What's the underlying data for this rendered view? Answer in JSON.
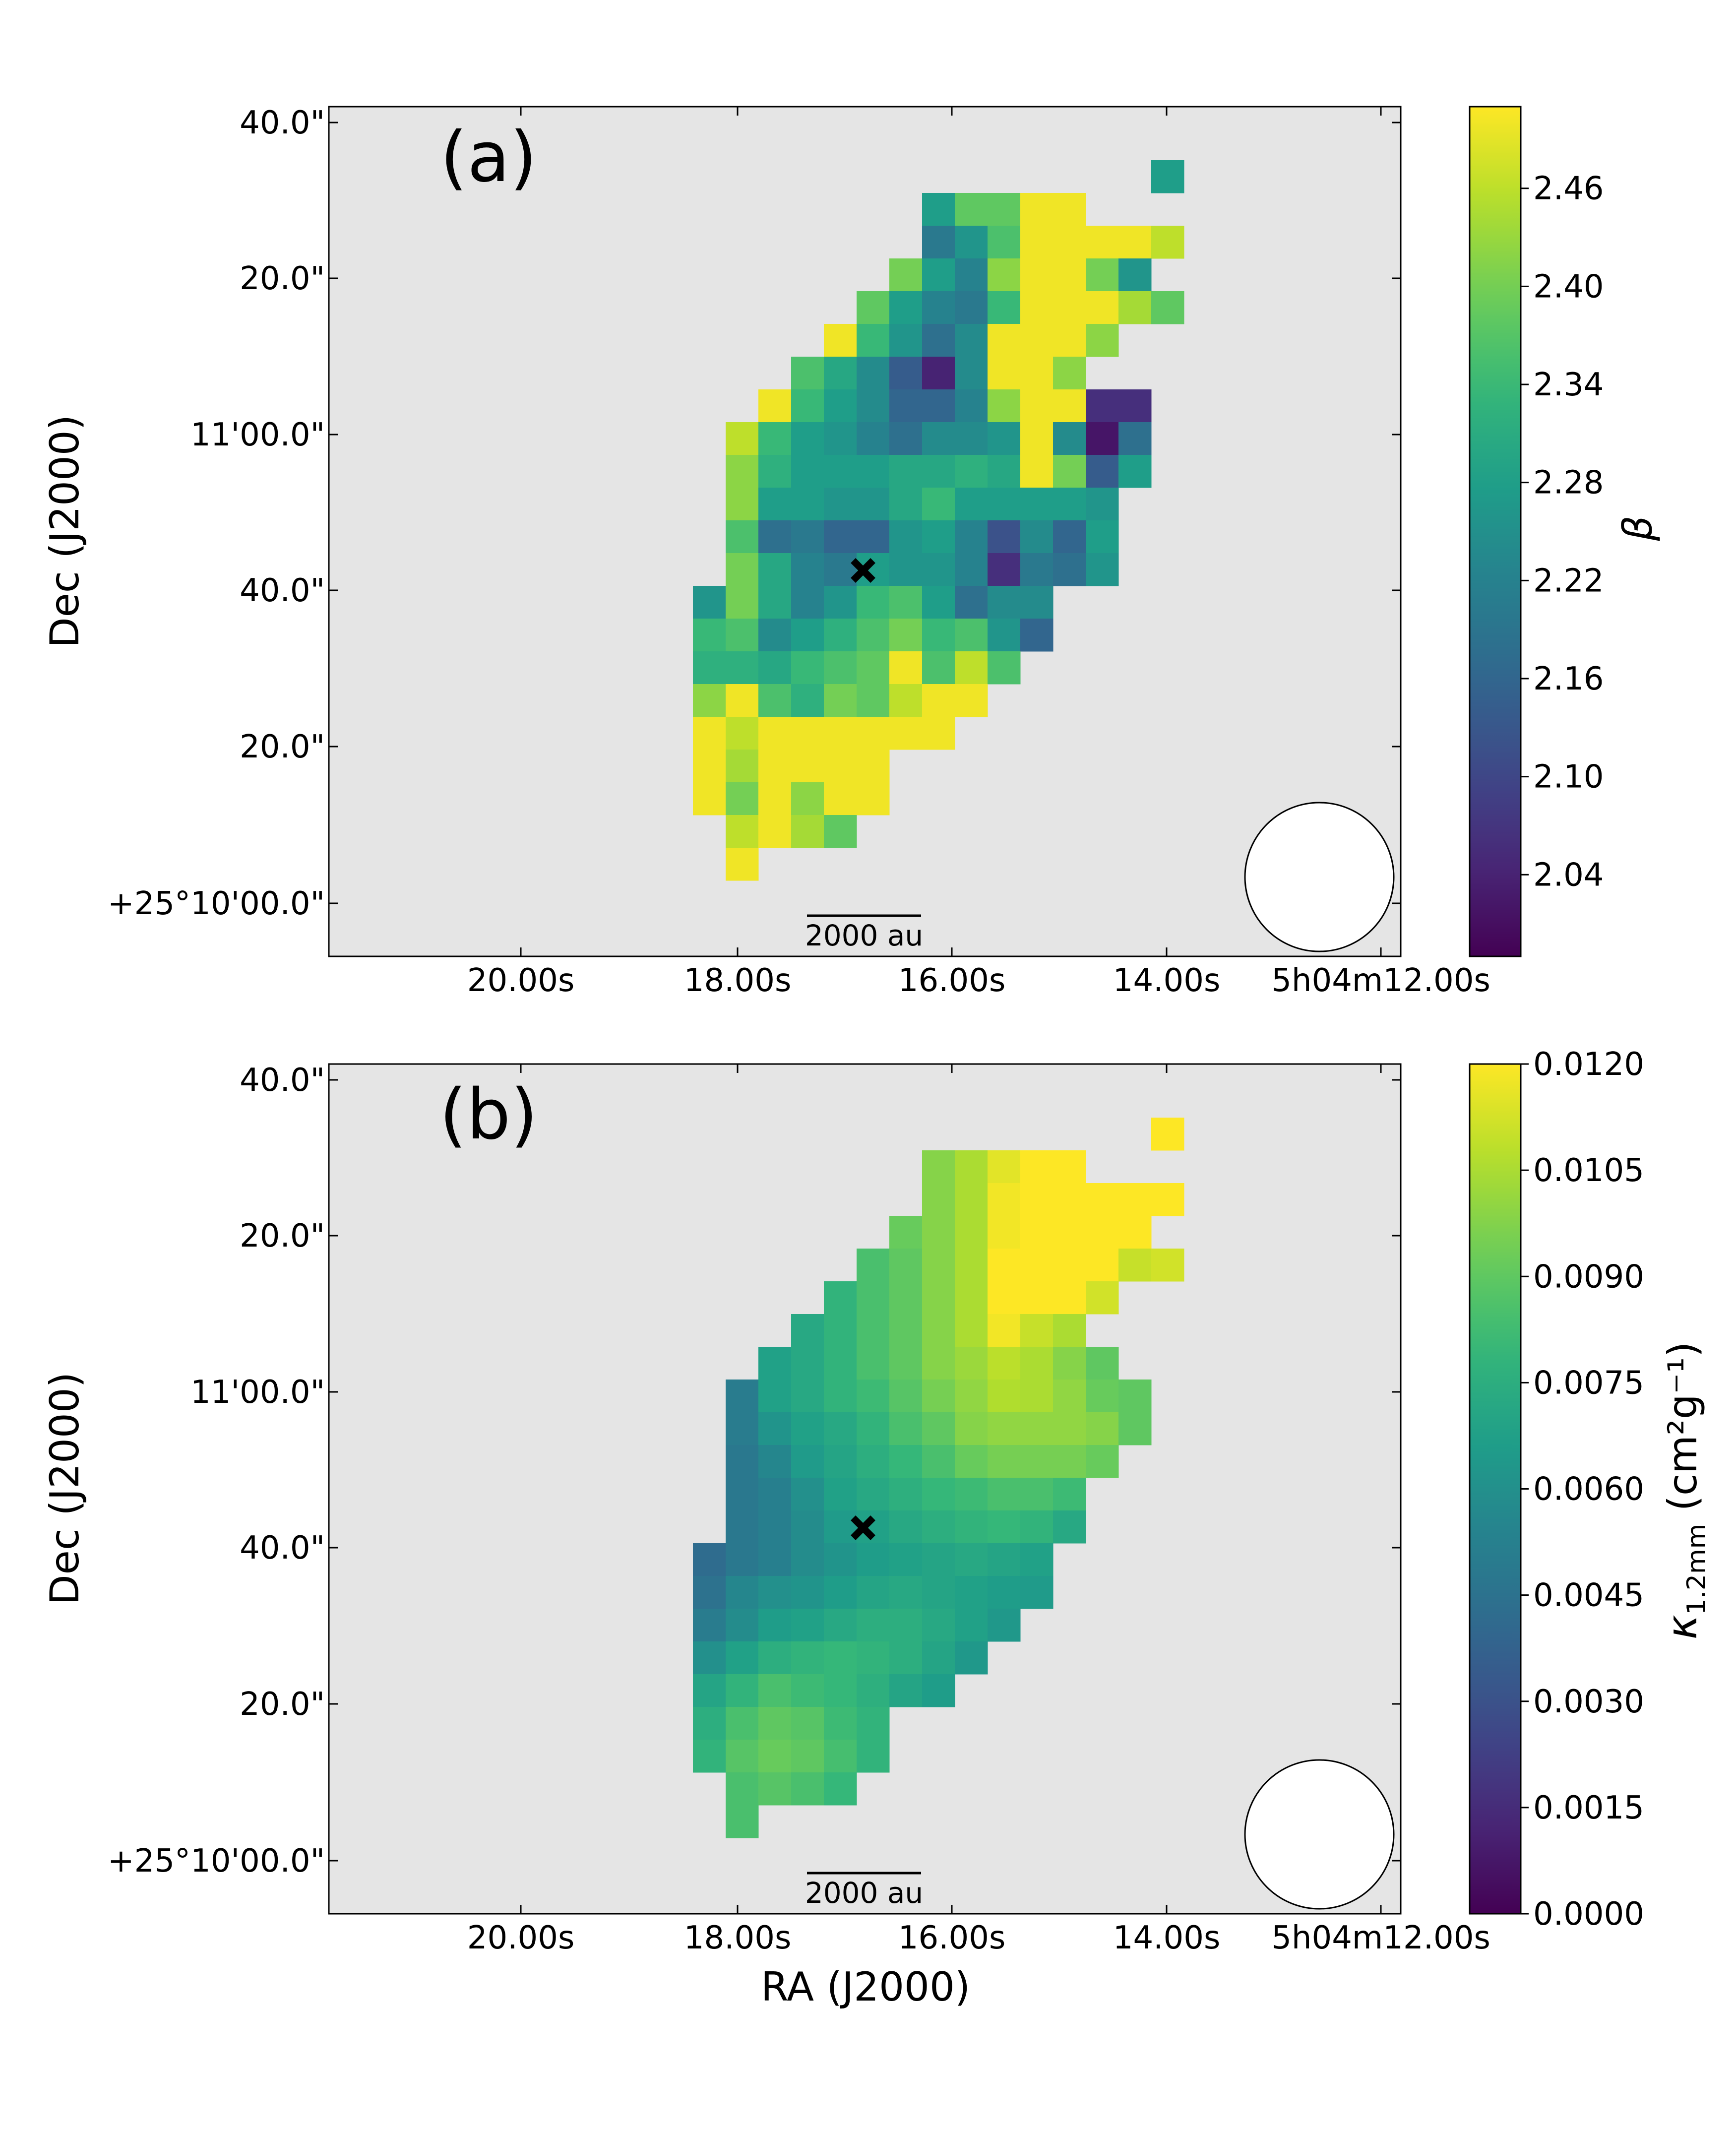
{
  "chart_data": [
    {
      "type": "heatmap",
      "panel_label": "(a)",
      "ylabel": "Dec (J2000)",
      "xlabel": "",
      "x_ticks": [
        "20.00s",
        "18.00s",
        "16.00s",
        "14.00s",
        "5h04m12.00s"
      ],
      "y_ticks": [
        "40.0\"",
        "20.0\"",
        "11'00.0\"",
        "40.0\"",
        "20.0\"",
        "+25°10'00.0\""
      ],
      "colorbar": {
        "label": "β",
        "range": [
          1.99,
          2.51
        ],
        "ticks": [
          "2.46",
          "2.40",
          "2.34",
          "2.28",
          "2.22",
          "2.16",
          "2.10",
          "2.04"
        ],
        "tick_values": [
          2.46,
          2.4,
          2.34,
          2.28,
          2.22,
          2.16,
          2.1,
          2.04
        ]
      },
      "marker": "×",
      "scale_bar": "2000 au",
      "beam": "circle",
      "pixel_rows": [
        {
          "row": 2,
          "start": 25,
          "values": [
            2.28
          ]
        },
        {
          "row": 3,
          "start": 18,
          "values": [
            2.28,
            2.38,
            2.38,
            2.5,
            2.5
          ]
        },
        {
          "row": 4,
          "start": 18,
          "values": [
            2.2,
            2.26,
            2.36,
            2.5,
            2.5,
            2.5,
            2.5,
            2.46
          ]
        },
        {
          "row": 5,
          "start": 17,
          "values": [
            2.4,
            2.28,
            2.22,
            2.42,
            2.5,
            2.5,
            2.4,
            2.26
          ]
        },
        {
          "row": 6,
          "start": 16,
          "values": [
            2.38,
            2.28,
            2.22,
            2.2,
            2.34,
            2.5,
            2.5,
            2.5,
            2.44,
            2.38
          ]
        },
        {
          "row": 7,
          "start": 15,
          "values": [
            2.5,
            2.34,
            2.26,
            2.18,
            2.24,
            2.5,
            2.5,
            2.5,
            2.42
          ]
        },
        {
          "row": 8,
          "start": 14,
          "values": [
            2.36,
            2.3,
            2.24,
            2.14,
            2.04,
            2.24,
            2.5,
            2.5,
            2.42
          ]
        },
        {
          "row": 9,
          "start": 13,
          "values": [
            2.5,
            2.34,
            2.28,
            2.24,
            2.16,
            2.16,
            2.22,
            2.42,
            2.5,
            2.5,
            2.06,
            2.06
          ]
        },
        {
          "row": 10,
          "start": 12,
          "values": [
            2.46,
            2.34,
            2.28,
            2.26,
            2.22,
            2.18,
            2.24,
            2.24,
            2.26,
            2.5,
            2.24,
            2.02,
            2.18
          ]
        },
        {
          "row": 11,
          "start": 12,
          "values": [
            2.42,
            2.32,
            2.28,
            2.28,
            2.28,
            2.3,
            2.3,
            2.32,
            2.3,
            2.5,
            2.4,
            2.14,
            2.28
          ]
        },
        {
          "row": 12,
          "start": 12,
          "values": [
            2.42,
            2.28,
            2.28,
            2.26,
            2.26,
            2.3,
            2.34,
            2.28,
            2.28,
            2.28,
            2.28,
            2.26
          ]
        },
        {
          "row": 13,
          "start": 12,
          "values": [
            2.36,
            2.18,
            2.2,
            2.16,
            2.16,
            2.26,
            2.28,
            2.22,
            2.12,
            2.24,
            2.16,
            2.28
          ]
        },
        {
          "row": 14,
          "start": 12,
          "values": [
            2.4,
            2.3,
            2.22,
            2.2,
            2.28,
            2.26,
            2.26,
            2.22,
            2.06,
            2.2,
            2.18,
            2.26
          ]
        },
        {
          "row": 15,
          "start": 11,
          "values": [
            2.26,
            2.4,
            2.3,
            2.22,
            2.26,
            2.34,
            2.36,
            2.28,
            2.18,
            2.24,
            2.24
          ]
        },
        {
          "row": 16,
          "start": 11,
          "values": [
            2.34,
            2.36,
            2.24,
            2.28,
            2.32,
            2.36,
            2.4,
            2.34,
            2.36,
            2.26,
            2.16
          ]
        },
        {
          "row": 17,
          "start": 11,
          "values": [
            2.32,
            2.32,
            2.3,
            2.34,
            2.36,
            2.38,
            2.5,
            2.36,
            2.46,
            2.36
          ]
        },
        {
          "row": 18,
          "start": 11,
          "values": [
            2.42,
            2.5,
            2.36,
            2.32,
            2.4,
            2.38,
            2.46,
            2.5,
            2.5
          ]
        },
        {
          "row": 19,
          "start": 11,
          "values": [
            2.5,
            2.46,
            2.5,
            2.5,
            2.5,
            2.5,
            2.5,
            2.5
          ]
        },
        {
          "row": 20,
          "start": 11,
          "values": [
            2.5,
            2.44,
            2.5,
            2.5,
            2.5,
            2.5
          ]
        },
        {
          "row": 21,
          "start": 11,
          "values": [
            2.5,
            2.4,
            2.5,
            2.42,
            2.5,
            2.5
          ]
        },
        {
          "row": 22,
          "start": 12,
          "values": [
            2.46,
            2.5,
            2.44,
            2.38
          ]
        },
        {
          "row": 23,
          "start": 12,
          "values": [
            2.5
          ]
        }
      ]
    },
    {
      "type": "heatmap",
      "panel_label": "(b)",
      "ylabel": "Dec (J2000)",
      "xlabel": "RA (J2000)",
      "x_ticks": [
        "20.00s",
        "18.00s",
        "16.00s",
        "14.00s",
        "5h04m12.00s"
      ],
      "y_ticks": [
        "40.0\"",
        "20.0\"",
        "11'00.0\"",
        "40.0\"",
        "20.0\"",
        "+25°10'00.0\""
      ],
      "colorbar": {
        "label": "κ1.2mm (cm²g⁻¹)",
        "label_main": "κ",
        "label_sub": "1.2mm",
        "label_unit": " (cm²g⁻¹)",
        "range": [
          0.0,
          0.012
        ],
        "ticks": [
          "0.0120",
          "0.0105",
          "0.0090",
          "0.0075",
          "0.0060",
          "0.0045",
          "0.0030",
          "0.0015",
          "0.0000"
        ],
        "tick_values": [
          0.012,
          0.0105,
          0.009,
          0.0075,
          0.006,
          0.0045,
          0.003,
          0.0015,
          0.0
        ]
      },
      "marker": "×",
      "scale_bar": "2000 au",
      "beam": "circle",
      "pixel_rows": [
        {
          "row": 2,
          "start": 25,
          "values": [
            0.012
          ]
        },
        {
          "row": 3,
          "start": 18,
          "values": [
            0.0098,
            0.0105,
            0.0115,
            0.012,
            0.012
          ]
        },
        {
          "row": 4,
          "start": 18,
          "values": [
            0.0098,
            0.0105,
            0.0118,
            0.012,
            0.012,
            0.012,
            0.012,
            0.012
          ]
        },
        {
          "row": 5,
          "start": 17,
          "values": [
            0.0092,
            0.0098,
            0.0105,
            0.0118,
            0.012,
            0.012,
            0.012,
            0.012
          ]
        },
        {
          "row": 6,
          "start": 16,
          "values": [
            0.0085,
            0.009,
            0.0098,
            0.0105,
            0.012,
            0.012,
            0.012,
            0.012,
            0.011,
            0.0112
          ]
        },
        {
          "row": 7,
          "start": 15,
          "values": [
            0.0078,
            0.0085,
            0.009,
            0.0098,
            0.0105,
            0.012,
            0.012,
            0.012,
            0.0112
          ]
        },
        {
          "row": 8,
          "start": 14,
          "values": [
            0.0072,
            0.0078,
            0.0085,
            0.009,
            0.0098,
            0.0105,
            0.0118,
            0.011,
            0.0105
          ]
        },
        {
          "row": 9,
          "start": 13,
          "values": [
            0.0068,
            0.0072,
            0.0078,
            0.0085,
            0.009,
            0.0098,
            0.0102,
            0.0108,
            0.0105,
            0.0098,
            0.009
          ]
        },
        {
          "row": 10,
          "start": 12,
          "values": [
            0.005,
            0.0068,
            0.0072,
            0.0078,
            0.0082,
            0.0088,
            0.0095,
            0.01,
            0.0106,
            0.0105,
            0.01,
            0.0092,
            0.009
          ]
        },
        {
          "row": 11,
          "start": 12,
          "values": [
            0.005,
            0.0062,
            0.0068,
            0.0072,
            0.0078,
            0.0085,
            0.009,
            0.0098,
            0.01,
            0.01,
            0.01,
            0.0098,
            0.009
          ]
        },
        {
          "row": 12,
          "start": 12,
          "values": [
            0.0048,
            0.0055,
            0.0065,
            0.007,
            0.0075,
            0.008,
            0.0085,
            0.0092,
            0.0095,
            0.0095,
            0.0095,
            0.0092
          ]
        },
        {
          "row": 13,
          "start": 12,
          "values": [
            0.0048,
            0.0052,
            0.006,
            0.0068,
            0.0072,
            0.0076,
            0.008,
            0.0082,
            0.0085,
            0.0085,
            0.0082
          ]
        },
        {
          "row": 14,
          "start": 12,
          "values": [
            0.0048,
            0.0052,
            0.0058,
            0.0065,
            0.0068,
            0.0072,
            0.0075,
            0.0078,
            0.008,
            0.0078,
            0.0072
          ]
        },
        {
          "row": 15,
          "start": 11,
          "values": [
            0.0042,
            0.0048,
            0.0052,
            0.0058,
            0.0062,
            0.0066,
            0.0068,
            0.007,
            0.0072,
            0.007,
            0.0068
          ]
        },
        {
          "row": 16,
          "start": 11,
          "values": [
            0.0045,
            0.0055,
            0.006,
            0.0062,
            0.0066,
            0.007,
            0.0072,
            0.007,
            0.0068,
            0.0066,
            0.0065
          ]
        },
        {
          "row": 17,
          "start": 11,
          "values": [
            0.005,
            0.0058,
            0.0066,
            0.0068,
            0.0072,
            0.0075,
            0.0075,
            0.0072,
            0.0068,
            0.0064
          ]
        },
        {
          "row": 18,
          "start": 11,
          "values": [
            0.006,
            0.0068,
            0.0075,
            0.0078,
            0.008,
            0.0078,
            0.0075,
            0.007,
            0.0064
          ]
        },
        {
          "row": 19,
          "start": 11,
          "values": [
            0.007,
            0.0078,
            0.0085,
            0.0082,
            0.008,
            0.0076,
            0.007,
            0.0066
          ]
        },
        {
          "row": 20,
          "start": 11,
          "values": [
            0.0075,
            0.0085,
            0.009,
            0.0088,
            0.0082,
            0.0078
          ]
        },
        {
          "row": 21,
          "start": 11,
          "values": [
            0.0078,
            0.0088,
            0.0092,
            0.009,
            0.0084,
            0.0078
          ]
        },
        {
          "row": 22,
          "start": 12,
          "values": [
            0.0085,
            0.0088,
            0.0085,
            0.008
          ]
        },
        {
          "row": 23,
          "start": 12,
          "values": [
            0.0085
          ]
        }
      ]
    }
  ]
}
